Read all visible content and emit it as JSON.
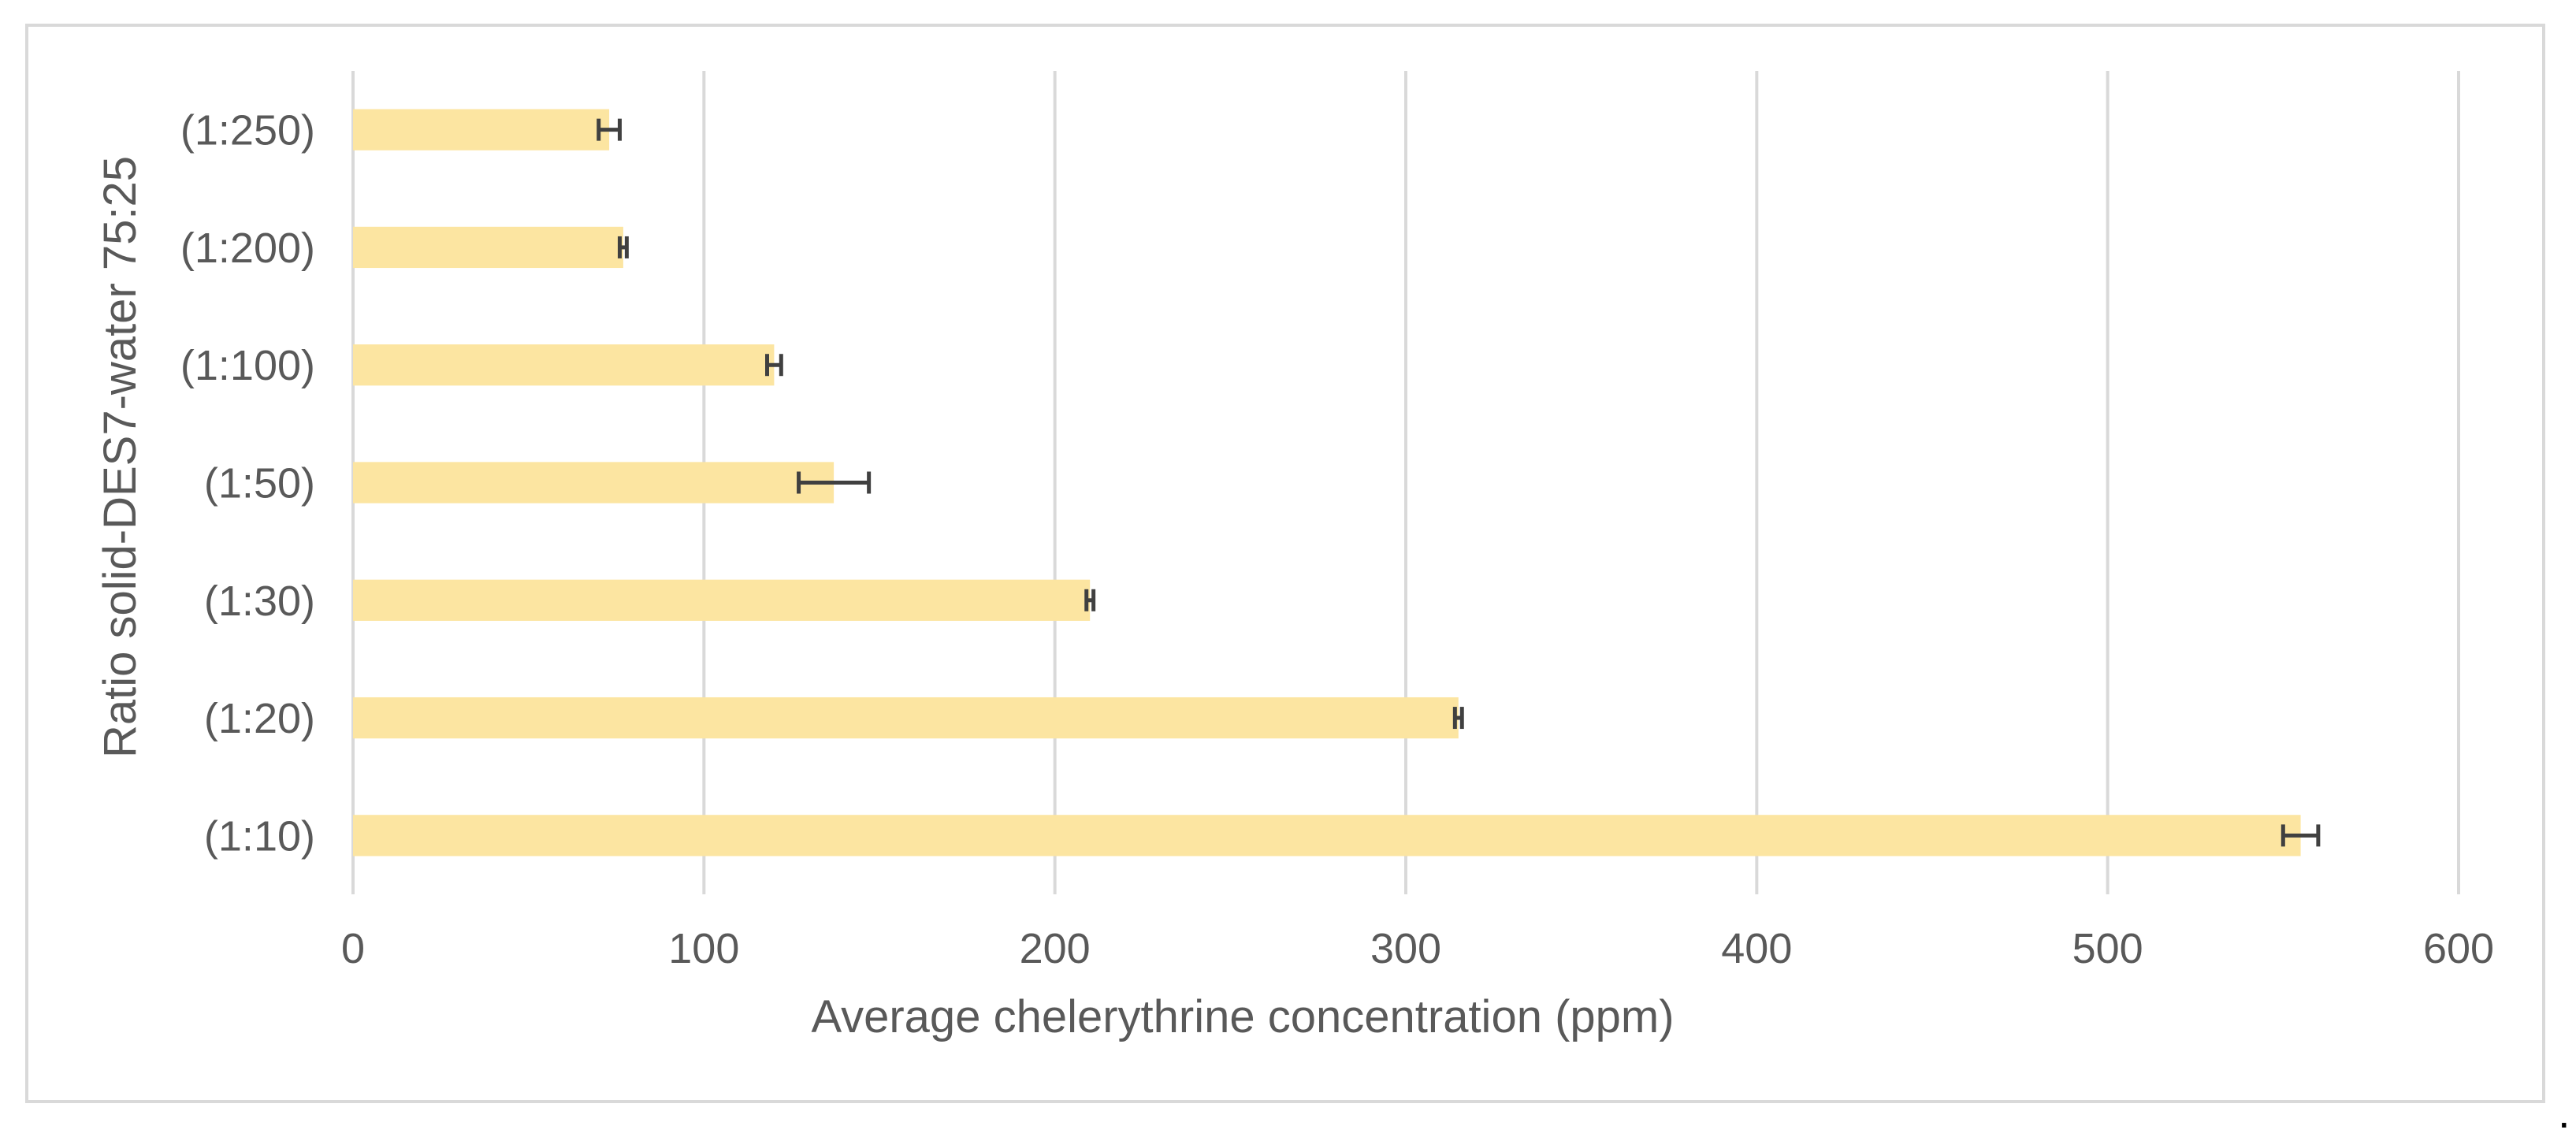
{
  "chart_data": {
    "type": "bar",
    "orientation": "horizontal",
    "categories": [
      "(1:10)",
      "(1:20)",
      "(1:30)",
      "(1:50)",
      "(1:100)",
      "(1:200)",
      "(1:250)"
    ],
    "values": [
      555,
      315,
      210,
      137,
      120,
      77,
      73
    ],
    "error": [
      5,
      1,
      1,
      10,
      2,
      1,
      3
    ],
    "xlabel": "Average chelerythrine concentration (ppm)",
    "ylabel": "Ratio solid-DES7-water 75:25",
    "xlim": [
      0,
      600
    ],
    "xticks": [
      "0",
      "100",
      "200",
      "300",
      "400",
      "500",
      "600"
    ],
    "grid": "vertical",
    "colors": {
      "bar": "#fce5a1",
      "error": "#404040",
      "grid": "#d9d9d9",
      "text": "#595959"
    }
  },
  "trailing_mark": "."
}
